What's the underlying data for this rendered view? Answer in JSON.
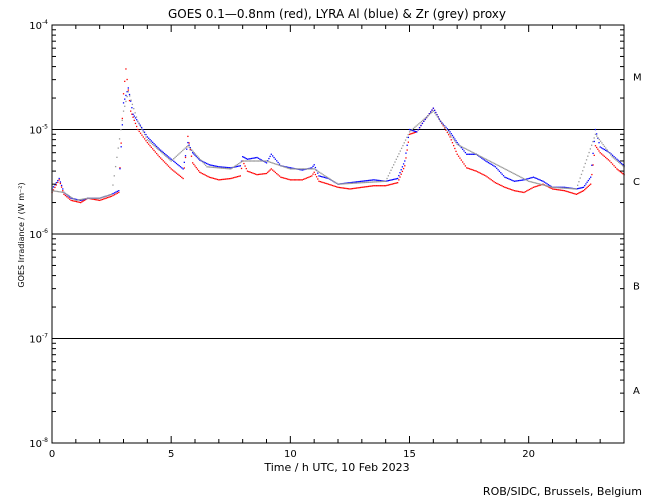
{
  "chart_data": {
    "type": "scatter",
    "title": "GOES 0.1—0.8nm (red), LYRA Al (blue) & Zr (grey) proxy",
    "xlabel": "Time / h UTC, 10 Feb 2023",
    "ylabel": "GOES Irradiance / (W m⁻²)",
    "credit": "ROB/SIDC, Brussels, Belgium",
    "xlim": [
      0,
      24
    ],
    "ylim": [
      1e-08,
      0.0001
    ],
    "yscale": "log",
    "x_ticks": [
      {
        "value": 0,
        "label": "0"
      },
      {
        "value": 5,
        "label": "5"
      },
      {
        "value": 10,
        "label": "10"
      },
      {
        "value": 15,
        "label": "15"
      },
      {
        "value": 20,
        "label": "20"
      }
    ],
    "y_ticks": [
      {
        "value": 0.0001,
        "base": "10",
        "exp": "-4"
      },
      {
        "value": 1e-05,
        "base": "10",
        "exp": "-5"
      },
      {
        "value": 1e-06,
        "base": "10",
        "exp": "-6"
      },
      {
        "value": 1e-07,
        "base": "10",
        "exp": "-7"
      },
      {
        "value": 1e-08,
        "base": "10",
        "exp": "-8"
      }
    ],
    "flare_classes": [
      {
        "label": "M",
        "value": 3.2e-05
      },
      {
        "label": "C",
        "value": 3.2e-06
      },
      {
        "label": "B",
        "value": 3.2e-07
      },
      {
        "label": "A",
        "value": 3.2e-08
      }
    ],
    "threshold_lines": [
      1e-05,
      1e-06,
      1e-07
    ],
    "series": [
      {
        "name": "GOES 0.1—0.8nm",
        "color": "#ff0000",
        "x": [
          0,
          0.3,
          0.5,
          0.8,
          1.2,
          1.5,
          2.0,
          2.5,
          2.8,
          3.0,
          3.1,
          3.3,
          3.6,
          4.0,
          4.5,
          5.0,
          5.5,
          5.7,
          5.9,
          6.2,
          6.6,
          7.0,
          7.5,
          7.9,
          8.0,
          8.2,
          8.6,
          9.0,
          9.2,
          9.6,
          10.0,
          10.5,
          10.9,
          11.0,
          11.2,
          11.6,
          12.0,
          12.5,
          13.0,
          13.5,
          14.0,
          14.5,
          14.8,
          15.0,
          15.3,
          15.6,
          16.0,
          16.3,
          16.7,
          17.0,
          17.4,
          17.8,
          18.2,
          18.6,
          19.0,
          19.4,
          19.8,
          20.2,
          20.6,
          21.0,
          21.5,
          22.0,
          22.3,
          22.6,
          22.8,
          23.0,
          23.4,
          23.7,
          24.0
        ],
        "y": [
          2.5e-06,
          3.3e-06,
          2.4e-06,
          2.1e-06,
          2e-06,
          2.2e-06,
          2.1e-06,
          2.3e-06,
          2.5e-06,
          2.2e-05,
          3.8e-05,
          1.5e-05,
          1e-05,
          7.5e-06,
          5.5e-06,
          4.2e-06,
          3.4e-06,
          8.6e-06,
          4.8e-06,
          3.9e-06,
          3.5e-06,
          3.3e-06,
          3.4e-06,
          3.6e-06,
          5e-06,
          4e-06,
          3.7e-06,
          3.8e-06,
          4.2e-06,
          3.5e-06,
          3.3e-06,
          3.3e-06,
          3.6e-06,
          3.9e-06,
          3.2e-06,
          3e-06,
          2.8e-06,
          2.7e-06,
          2.8e-06,
          2.9e-06,
          2.9e-06,
          3.1e-06,
          4.5e-06,
          9e-06,
          9.5e-06,
          1.2e-05,
          1.6e-05,
          1.2e-05,
          8.5e-06,
          5.8e-06,
          4.3e-06,
          4e-06,
          3.6e-06,
          3.1e-06,
          2.8e-06,
          2.6e-06,
          2.5e-06,
          2.8e-06,
          3e-06,
          2.7e-06,
          2.6e-06,
          2.4e-06,
          2.6e-06,
          3e-06,
          7e-06,
          6e-06,
          5e-06,
          4.2e-06,
          3.7e-06
        ]
      },
      {
        "name": "LYRA Al",
        "color": "#0000ff",
        "x": [
          0,
          0.3,
          0.5,
          0.8,
          1.2,
          1.5,
          2.0,
          2.5,
          2.8,
          3.0,
          3.2,
          3.4,
          3.7,
          4.0,
          4.5,
          5.0,
          5.5,
          5.7,
          5.9,
          6.2,
          6.6,
          7.0,
          7.5,
          7.9,
          8.0,
          8.2,
          8.6,
          9.0,
          9.2,
          9.6,
          10.0,
          10.5,
          10.9,
          11.0,
          11.2,
          11.6,
          12.0,
          12.5,
          13.0,
          13.5,
          14.0,
          14.5,
          14.8,
          15.0,
          15.3,
          15.6,
          16.0,
          16.3,
          16.7,
          17.0,
          17.4,
          17.8,
          18.2,
          18.6,
          19.0,
          19.4,
          19.8,
          20.2,
          20.6,
          21.0,
          21.5,
          22.0,
          22.3,
          22.6,
          22.8,
          23.0,
          23.4,
          23.7,
          24.0
        ],
        "y": [
          2.7e-06,
          3.4e-06,
          2.5e-06,
          2.2e-06,
          2.1e-06,
          2.2e-06,
          2.2e-06,
          2.4e-06,
          2.6e-06,
          1.8e-05,
          2.5e-05,
          1.4e-05,
          1.1e-05,
          8.5e-06,
          6.5e-06,
          5.2e-06,
          4.2e-06,
          7.5e-06,
          6e-06,
          5.1e-06,
          4.6e-06,
          4.4e-06,
          4.3e-06,
          4.5e-06,
          5.5e-06,
          5.2e-06,
          5.4e-06,
          4.8e-06,
          5.8e-06,
          4.5e-06,
          4.3e-06,
          4.1e-06,
          4.3e-06,
          4.6e-06,
          3.6e-06,
          3.4e-06,
          3e-06,
          3.1e-06,
          3.2e-06,
          3.3e-06,
          3.2e-06,
          3.4e-06,
          5e-06,
          1e-05,
          9.5e-06,
          1.2e-05,
          1.6e-05,
          1.2e-05,
          9.5e-06,
          7.5e-06,
          5.8e-06,
          5.8e-06,
          5e-06,
          4.4e-06,
          3.5e-06,
          3.2e-06,
          3.3e-06,
          3.5e-06,
          3.2e-06,
          2.8e-06,
          2.8e-06,
          2.7e-06,
          2.8e-06,
          3.5e-06,
          1e-05,
          6.8e-06,
          6e-06,
          5.2e-06,
          4.5e-06
        ]
      },
      {
        "name": "Zr",
        "color": "#999999",
        "x": [
          0,
          0.5,
          1.0,
          1.5,
          2.0,
          2.5,
          3.0,
          3.2,
          3.6,
          4.0,
          5.0,
          5.7,
          6.5,
          7.5,
          8.0,
          9.0,
          10.0,
          11.0,
          12.0,
          13.0,
          14.0,
          15.0,
          16.0,
          17.0,
          18.0,
          19.0,
          20.0,
          21.0,
          22.0,
          22.8,
          23.5,
          24.0
        ],
        "y": [
          2.6e-06,
          2.5e-06,
          2.1e-06,
          2.2e-06,
          2.2e-06,
          2.4e-06,
          1.5e-05,
          2.3e-05,
          1.2e-05,
          8e-06,
          5e-06,
          7e-06,
          4.4e-06,
          4.2e-06,
          5e-06,
          5e-06,
          4.2e-06,
          4.2e-06,
          3e-06,
          3.1e-06,
          3.2e-06,
          9.5e-06,
          1.5e-05,
          7.2e-06,
          5.5e-06,
          4.2e-06,
          3.2e-06,
          2.8e-06,
          2.7e-06,
          9e-06,
          5.5e-06,
          4.4e-06
        ]
      }
    ]
  }
}
